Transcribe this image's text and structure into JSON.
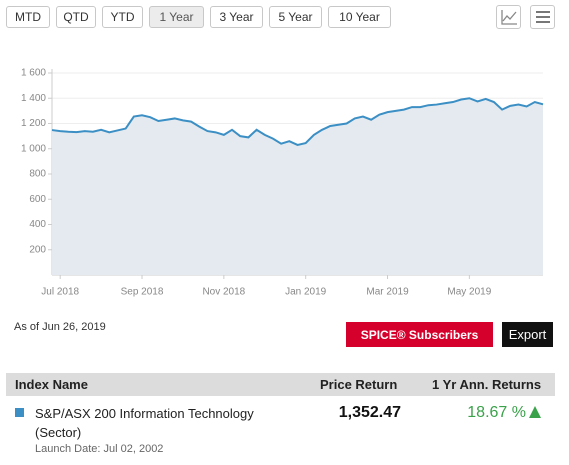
{
  "toolbar": {
    "buttons": [
      "MTD",
      "QTD",
      "YTD",
      "1 Year",
      "3 Year",
      "5 Year",
      "10 Year"
    ],
    "active": 3
  },
  "chart_data": {
    "type": "line",
    "categories": [
      null,
      "Jul 2018",
      null,
      null,
      null,
      null,
      null,
      null,
      null,
      null,
      null,
      "Sep 2018",
      null,
      null,
      null,
      null,
      null,
      null,
      null,
      null,
      null,
      "Nov 2018",
      null,
      null,
      null,
      null,
      null,
      null,
      null,
      null,
      null,
      "Jan 2019",
      null,
      null,
      null,
      null,
      null,
      null,
      null,
      null,
      null,
      "Mar 2019",
      null,
      null,
      null,
      null,
      null,
      null,
      null,
      null,
      null,
      "May 2019",
      null,
      null,
      null,
      null,
      null,
      null,
      null,
      null,
      null
    ],
    "series": [
      {
        "name": "S&P/ASX 200 Information Technology (Sector)",
        "color": "#3b8fc4",
        "values": [
          1148,
          1140,
          1135,
          1132,
          1140,
          1135,
          1150,
          1130,
          1145,
          1160,
          1255,
          1265,
          1250,
          1220,
          1230,
          1240,
          1225,
          1215,
          1175,
          1140,
          1130,
          1110,
          1150,
          1100,
          1090,
          1150,
          1110,
          1080,
          1040,
          1060,
          1030,
          1045,
          1110,
          1150,
          1180,
          1190,
          1200,
          1240,
          1255,
          1230,
          1270,
          1290,
          1300,
          1310,
          1330,
          1330,
          1345,
          1350,
          1360,
          1370,
          1390,
          1400,
          1375,
          1395,
          1370,
          1310,
          1340,
          1350,
          1335,
          1370,
          1352
        ]
      }
    ],
    "area_color": "#e4eaf0",
    "ylim": [
      0,
      1600
    ],
    "yticks": [
      200,
      400,
      600,
      800,
      {
        "value": 1000,
        "label": "1 000"
      },
      {
        "value": 1200,
        "label": "1 200"
      },
      {
        "value": 1400,
        "label": "1 400"
      },
      {
        "value": 1600,
        "label": "1 600"
      }
    ],
    "grid": true
  },
  "as_of": "As of Jun 26, 2019",
  "actions": {
    "subscribers": "SPICE® Subscribers",
    "export": "Export"
  },
  "table": {
    "header": [
      "Index Name",
      "Price Return",
      "1 Yr Ann. Returns"
    ],
    "rows": [
      {
        "name": "S&P/ASX 200 Information Technology (Sector)",
        "price_return": "1,352.47",
        "annual_return": "18.67 %",
        "launch_date": "Launch Date: Jul 02, 2002"
      }
    ]
  }
}
